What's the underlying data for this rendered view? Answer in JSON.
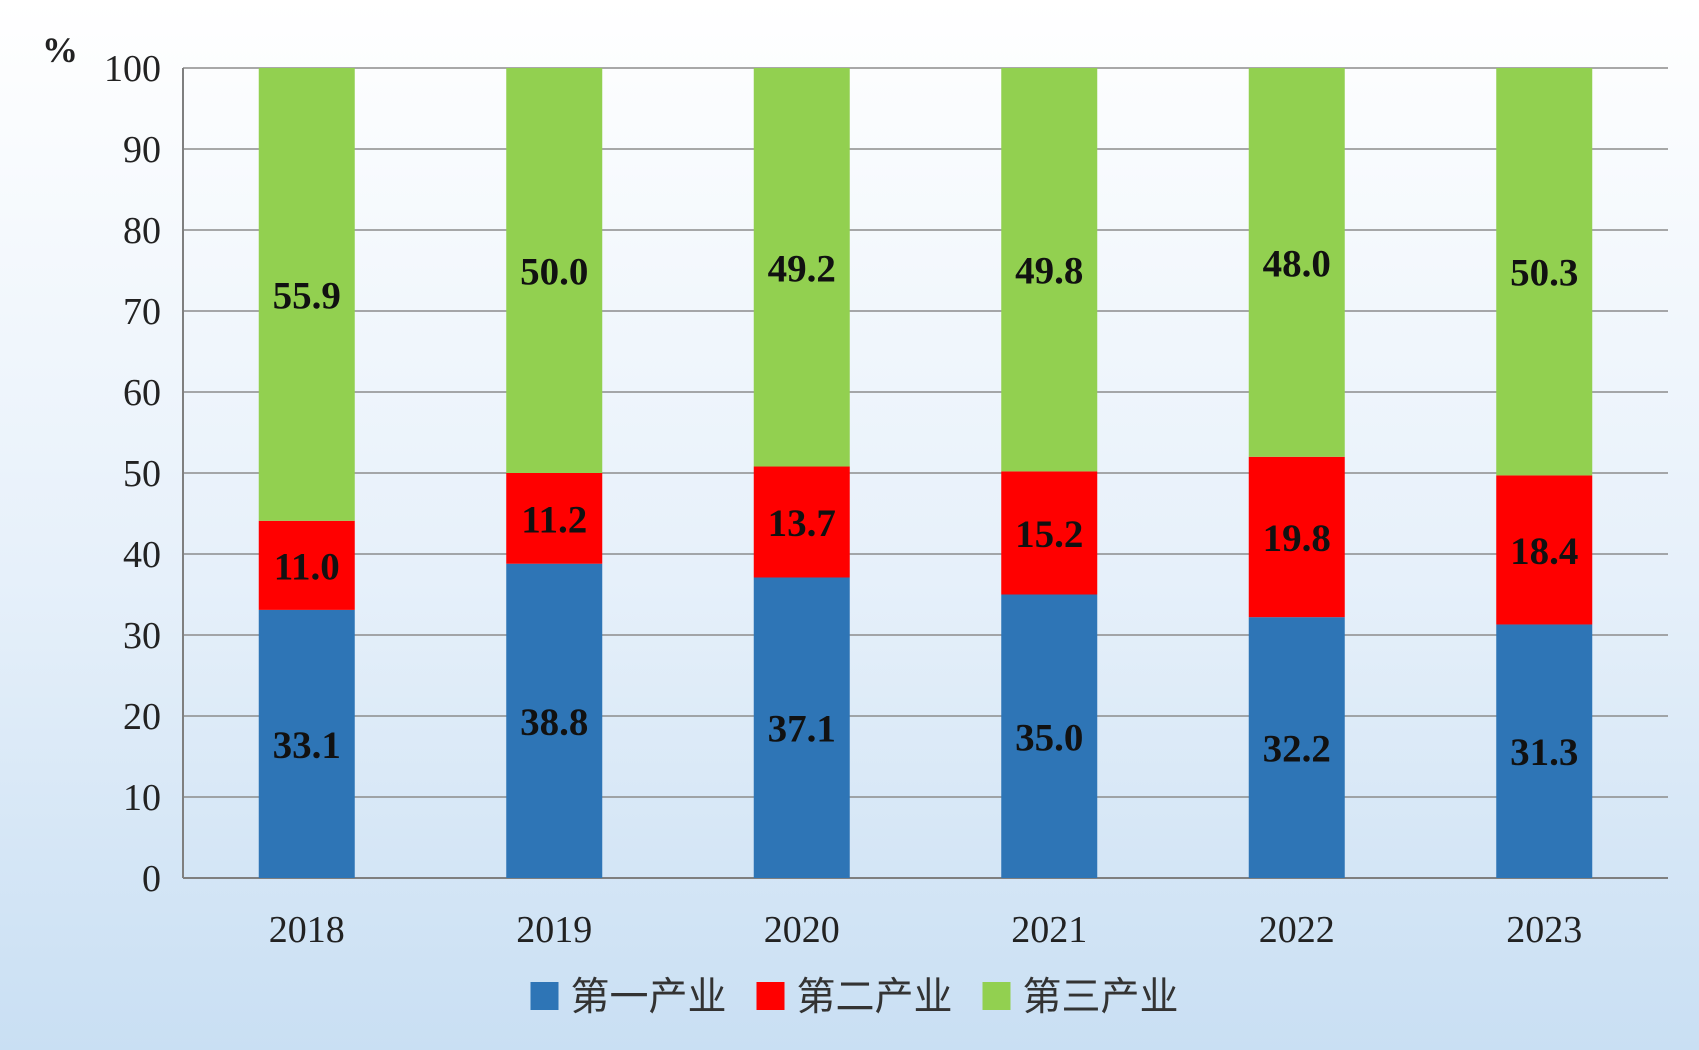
{
  "chart_data": {
    "type": "bar",
    "stacked": true,
    "unit": "%",
    "categories": [
      "2018",
      "2019",
      "2020",
      "2021",
      "2022",
      "2023"
    ],
    "series": [
      {
        "name": "第一产业",
        "color": "#2e75b6",
        "values": [
          33.1,
          38.8,
          37.1,
          35.0,
          32.2,
          31.3
        ]
      },
      {
        "name": "第二产业",
        "color": "#ff0000",
        "values": [
          11.0,
          11.2,
          13.7,
          15.2,
          19.8,
          18.4
        ]
      },
      {
        "name": "第三产业",
        "color": "#92d050",
        "values": [
          55.9,
          50.0,
          49.2,
          49.8,
          48.0,
          50.3
        ]
      }
    ],
    "ylim": [
      0,
      100
    ],
    "yticks": [
      0,
      10,
      20,
      30,
      40,
      50,
      60,
      70,
      80,
      90,
      100
    ],
    "grid": true,
    "legend_position": "bottom"
  }
}
